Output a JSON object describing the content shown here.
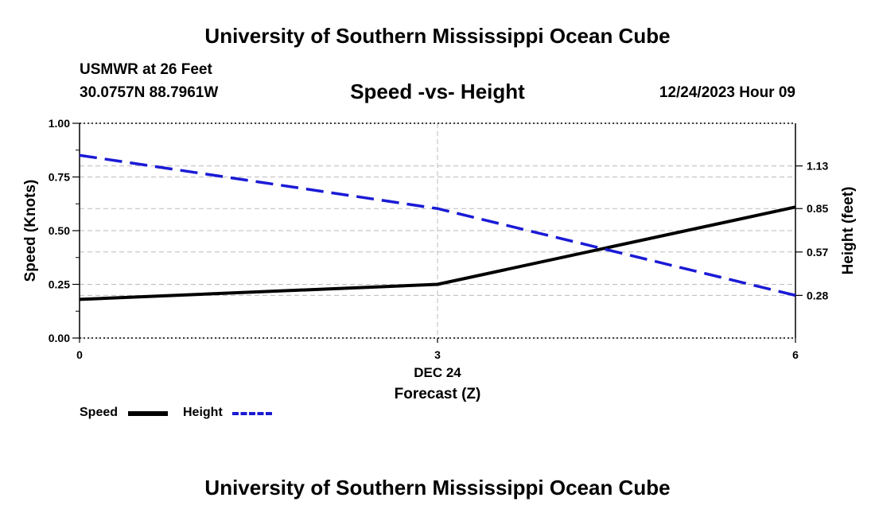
{
  "header": {
    "title": "University of Southern Mississippi Ocean Cube",
    "station": "USMWR at 26 Feet",
    "coordinates": "30.0757N  88.7961W",
    "subtitle": "Speed -vs- Height",
    "datetime": "12/24/2023 Hour 09"
  },
  "footer": {
    "title": "University of Southern Mississippi Ocean Cube"
  },
  "legend": {
    "speed_label": "Speed",
    "height_label": "Height"
  },
  "colors": {
    "speed": "#000000",
    "height": "#1a1ad6",
    "grid": "#bbbbbb"
  },
  "chart_data": {
    "type": "line",
    "title": "Speed -vs- Height",
    "xlabel": "Forecast (Z)",
    "x_date_label": "DEC 24",
    "x": [
      0,
      3,
      6
    ],
    "x_ticks": [
      "0",
      "3",
      "6"
    ],
    "xlim": [
      0,
      6
    ],
    "ylabel": "Speed (Knots)",
    "ylim": [
      0,
      1
    ],
    "y_ticks": [
      "0.00",
      "0.25",
      "0.50",
      "0.75",
      "1.00"
    ],
    "y2label": "Height (feet)",
    "y2lim": [
      0,
      1.41
    ],
    "y2_ticks": [
      {
        "value": 0.28,
        "label": "0.28"
      },
      {
        "value": 0.565,
        "label": "0.57"
      },
      {
        "value": 0.85,
        "label": "0.85"
      },
      {
        "value": 1.13,
        "label": "1.13"
      }
    ],
    "grid": true,
    "series": [
      {
        "name": "Speed",
        "axis": "left",
        "style": "solid",
        "values": [
          0.18,
          0.25,
          0.61
        ]
      },
      {
        "name": "Height",
        "axis": "right",
        "style": "dashed",
        "values": [
          1.2,
          0.85,
          0.28
        ]
      }
    ]
  }
}
